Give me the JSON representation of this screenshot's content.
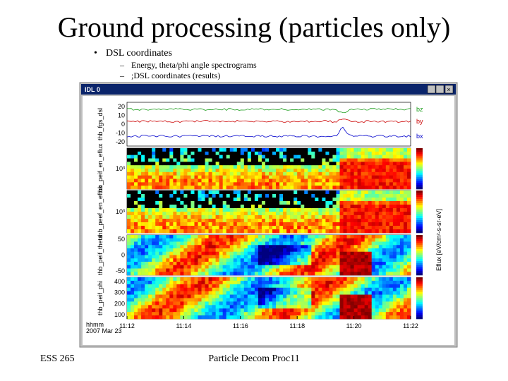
{
  "slide": {
    "title": "Ground processing (particles only)",
    "bullets": [
      {
        "text": "DSL coordinates",
        "sub": [
          "Energy, theta/phi angle spectrograms",
          ";DSL coordinates (results)"
        ]
      }
    ],
    "footer": {
      "left": "ESS 265",
      "center": "Particle Decom Proc11"
    }
  },
  "window": {
    "title": "IDL 0",
    "legend": [
      "bz",
      "by",
      "bx"
    ],
    "panels": [
      {
        "ylabel": "thb_fgs_dsl",
        "yticks": [
          "20",
          "10",
          "0",
          "-10",
          "-20"
        ]
      },
      {
        "ylabel": "thb_peif_en_eflux",
        "yticks": [
          "10³"
        ]
      },
      {
        "ylabel": "thb_peef_en_eflux",
        "yticks": [
          "10³"
        ]
      },
      {
        "ylabel": "thb_peif_theta",
        "yticks": [
          "50",
          "0",
          "-50"
        ]
      },
      {
        "ylabel": "thb_peif_phi",
        "yticks": [
          "400",
          "300",
          "200",
          "100"
        ]
      }
    ],
    "colorbar_label": "Eflux [eV/cm²-s-sr-eV]",
    "xticks": [
      "11:12",
      "11:14",
      "11:16",
      "11:18",
      "11:20",
      "11:22"
    ],
    "xlabel": [
      "hhmm",
      "2007 Mar 23"
    ]
  }
}
